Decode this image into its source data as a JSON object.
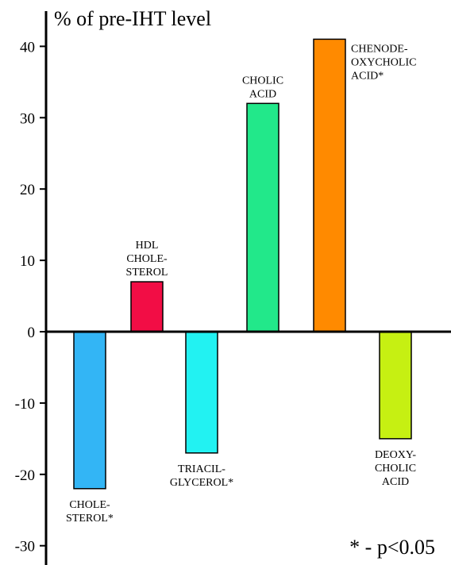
{
  "chart_data": {
    "type": "bar",
    "ylabel": "% of pre-IHT level",
    "ylim": [
      -30,
      40
    ],
    "y_ticks": [
      40,
      30,
      20,
      10,
      0,
      -10,
      -20,
      -30
    ],
    "grid": false,
    "legend": "none",
    "categories": [
      "CHOLE-STEROL*",
      "HDL CHOLE-STEROL",
      "TRIACIL-GLYCEROL*",
      "CHOLIC ACID",
      "CHENODE-OXYCHOLIC ACID*",
      "DEOXY-CHOLIC ACID"
    ],
    "values": [
      -22,
      7,
      -17,
      32,
      41,
      -15
    ],
    "bars": [
      {
        "value": -22,
        "color": "#33b5f5",
        "label_lines": [
          "CHOLE-",
          "STEROL*"
        ]
      },
      {
        "value": 7,
        "color": "#f20d45",
        "label_lines": [
          "HDL",
          "CHOLE-",
          "STEROL"
        ]
      },
      {
        "value": -17,
        "color": "#22f2f2",
        "label_lines": [
          "TRIACIL-",
          "GLYCEROL*"
        ]
      },
      {
        "value": 32,
        "color": "#22e88a",
        "label_lines": [
          "CHOLIC",
          "ACID"
        ]
      },
      {
        "value": 41,
        "color": "#ff8a00",
        "label_lines": [
          "CHENODE-",
          "OXYCHOLIC",
          "ACID*"
        ]
      },
      {
        "value": -15,
        "color": "#c6f012",
        "label_lines": [
          "DEOXY-",
          "CHOLIC",
          "ACID"
        ]
      }
    ],
    "annotation": "* - p<0.05"
  }
}
